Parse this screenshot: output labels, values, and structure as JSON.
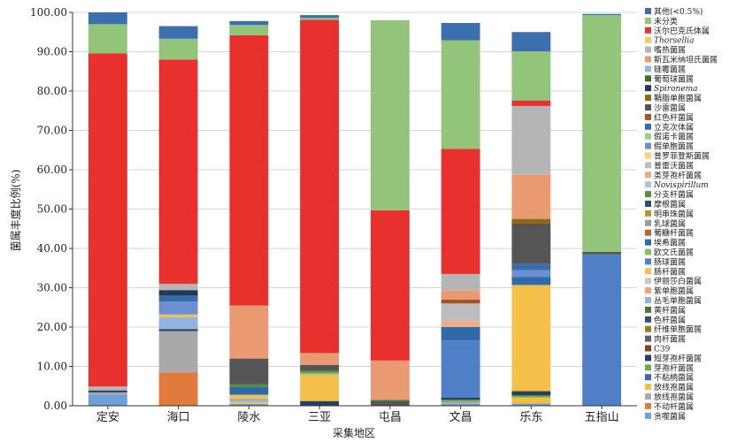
{
  "chart_data": {
    "type": "bar",
    "stacked": true,
    "title": "",
    "xlabel": "采集地区",
    "ylabel": "菌属丰度比例(%)",
    "ylim": [
      0,
      100
    ],
    "yticks": [
      "0.00",
      "10.00",
      "20.00",
      "30.00",
      "40.00",
      "50.00",
      "60.00",
      "70.00",
      "80.00",
      "90.00",
      "100.00"
    ],
    "categories": [
      "定安",
      "海口",
      "陵水",
      "三亚",
      "屯昌",
      "文昌",
      "乐东",
      "五指山"
    ],
    "legend_position": "right",
    "series": [
      {
        "name": "贪噬菌属",
        "color": "#6f9fd8",
        "values": [
          2.8,
          0,
          0.5,
          0,
          0,
          0.5,
          0.6,
          0
        ]
      },
      {
        "name": "不动杆菌属",
        "color": "#e07b3c",
        "values": [
          0,
          8.5,
          0,
          0,
          0,
          0,
          0,
          0
        ]
      },
      {
        "name": "放线孢菌属",
        "color": "#a9a9a9",
        "values": [
          0.6,
          10.5,
          0,
          0,
          0,
          0.5,
          0,
          0
        ]
      },
      {
        "name": "放线孢菌属",
        "color": "#f2c040",
        "values": [
          0,
          0,
          0.5,
          0,
          0,
          0,
          1.5,
          0
        ]
      },
      {
        "name": "不粘柄菌属",
        "color": "#3d66b8",
        "values": [
          0,
          0,
          0,
          0,
          0,
          0,
          0,
          0
        ]
      },
      {
        "name": "芽孢杆菌属",
        "color": "#72ab48",
        "values": [
          0,
          0,
          0,
          0,
          0,
          0.5,
          0.5,
          0
        ]
      },
      {
        "name": "短芽孢杆菌属",
        "color": "#23405f",
        "values": [
          0.5,
          0.5,
          0,
          1.2,
          0,
          0.6,
          1.1,
          0
        ]
      },
      {
        "name": "C39",
        "color": "#8b3e1e",
        "values": [
          0,
          0,
          0,
          0,
          0.5,
          0,
          0,
          0
        ]
      },
      {
        "name": "肉杆菌属",
        "color": "#5f5f5f",
        "values": [
          0,
          0,
          0,
          0,
          0,
          0,
          0,
          0
        ]
      },
      {
        "name": "纤维单胞菌属",
        "color": "#9c7b1e",
        "values": [
          0,
          0,
          0,
          0,
          0,
          0,
          0,
          0
        ]
      },
      {
        "name": "色杆菌属",
        "color": "#2f4e78",
        "values": [
          0,
          0,
          0,
          0,
          0.5,
          0,
          0,
          0
        ]
      },
      {
        "name": "黄杆菌属",
        "color": "#4a7b2c",
        "values": [
          0,
          0,
          0,
          0,
          0.5,
          0,
          0,
          0
        ]
      },
      {
        "name": "丛毛单胞菌属",
        "color": "#8fb4e0",
        "values": [
          0,
          3.0,
          0.8,
          0,
          0,
          0,
          0,
          0
        ]
      },
      {
        "name": "紫单胞菌属",
        "color": "#f4a07a",
        "values": [
          0,
          0,
          0,
          0,
          0,
          0,
          0,
          0
        ]
      },
      {
        "name": "伊丽莎白菌属",
        "color": "#c8c8c8",
        "values": [
          0,
          0,
          0,
          0,
          0,
          0,
          0,
          0
        ]
      },
      {
        "name": "肠杆菌属",
        "color": "#f5c04a",
        "values": [
          0,
          0.7,
          1.0,
          6.7,
          0,
          0,
          27,
          0
        ]
      },
      {
        "name": "肠球菌属",
        "color": "#4f7fc6",
        "values": [
          0,
          0,
          0,
          0,
          0,
          14.5,
          0,
          38.5
        ]
      },
      {
        "name": "欧文氏菌属",
        "color": "#8dbe6a",
        "values": [
          0,
          0,
          0,
          0.5,
          0,
          0,
          0,
          0
        ]
      },
      {
        "name": "埃希菌属",
        "color": "#2e6aa8",
        "values": [
          0,
          0,
          2.0,
          0,
          0,
          3.4,
          2,
          0
        ]
      },
      {
        "name": "葡糖杆菌属",
        "color": "#c0652a",
        "values": [
          0,
          0,
          0,
          0,
          0,
          0,
          0,
          0
        ]
      },
      {
        "name": "乳球菌属",
        "color": "#9b9b9b",
        "values": [
          0,
          0,
          0,
          0,
          0,
          0,
          0,
          0
        ]
      },
      {
        "name": "明串珠菌属",
        "color": "#b8962e",
        "values": [
          0,
          0,
          0,
          0,
          0,
          0,
          0,
          0
        ]
      },
      {
        "name": "摩根菌属",
        "color": "#2e4d7a",
        "values": [
          0,
          0,
          0,
          0,
          0,
          0,
          0,
          0
        ]
      },
      {
        "name": "分支杆菌属",
        "color": "#5a8c3a",
        "values": [
          0,
          0,
          0.7,
          0.5,
          0,
          0,
          0,
          0
        ]
      },
      {
        "name": "Novispirillum",
        "color": "#a8c4e8",
        "italic": true,
        "values": [
          0,
          0,
          0,
          0,
          0,
          0,
          0,
          0
        ]
      },
      {
        "name": "类芽孢杆菌属",
        "color": "#f0aa88",
        "values": [
          0,
          0,
          0,
          0,
          0,
          1.5,
          0,
          0
        ]
      },
      {
        "name": "普雷沃菌属",
        "color": "#bdbdbd",
        "values": [
          0,
          0,
          0,
          0,
          0,
          4.5,
          0,
          0
        ]
      },
      {
        "name": "普罗菲登斯菌属",
        "color": "#f7d27a",
        "values": [
          0,
          0,
          0,
          0,
          0,
          0,
          0,
          0
        ]
      },
      {
        "name": "假单胞菌属",
        "color": "#6b8fd0",
        "values": [
          0,
          3.3,
          0,
          0,
          0,
          0,
          1.8,
          0
        ]
      },
      {
        "name": "假诺卡菌属",
        "color": "#a3cc84",
        "values": [
          0,
          0,
          0,
          0,
          0,
          0,
          0,
          0
        ]
      },
      {
        "name": "立克次体属",
        "color": "#3a6ca8",
        "values": [
          0,
          1.5,
          0,
          0,
          0,
          0,
          1.6,
          0
        ]
      },
      {
        "name": "红色杆菌属",
        "color": "#a8502a",
        "values": [
          0,
          0,
          0,
          0,
          0,
          1.0,
          0,
          0
        ]
      },
      {
        "name": "沙雷菌属",
        "color": "#555555",
        "values": [
          0,
          0,
          6.5,
          1.5,
          0,
          0,
          10.2,
          0.6
        ]
      },
      {
        "name": "鞘脂单胞菌属",
        "color": "#8a6a1a",
        "values": [
          0,
          0,
          0,
          0,
          0,
          0,
          1.2,
          0
        ]
      },
      {
        "name": "Spironema",
        "color": "#22385a",
        "italic": true,
        "values": [
          0,
          1.4,
          0,
          0,
          0,
          0,
          0,
          0
        ]
      },
      {
        "name": "葡萄球菌属",
        "color": "#3e6e28",
        "values": [
          0,
          0,
          0,
          0,
          0,
          0,
          0,
          0
        ]
      },
      {
        "name": "链霉菌属",
        "color": "#8fb8e8",
        "values": [
          0,
          0,
          0,
          0,
          0,
          0,
          0,
          0
        ]
      },
      {
        "name": "斯瓦米纳坦氏菌属",
        "color": "#e99a70",
        "values": [
          0,
          0,
          13.5,
          3.0,
          10.0,
          2.3,
          11.2,
          0
        ]
      },
      {
        "name": "嗜热菌属",
        "color": "#b5b5b5",
        "values": [
          1.0,
          1.6,
          0,
          0,
          0,
          4.2,
          17.5,
          0
        ]
      },
      {
        "name": "Thorsellia",
        "color": "#f5c95a",
        "italic": true,
        "values": [
          0,
          0,
          0,
          0,
          0,
          0,
          0,
          0
        ]
      },
      {
        "name": "沃尔巴克氏体属",
        "color": "#e8302e",
        "values": [
          84.7,
          57.0,
          68.7,
          84.7,
          38.2,
          31.8,
          1.4,
          0
        ]
      },
      {
        "name": "未分类",
        "color": "#92c47a",
        "values": [
          7.4,
          5.3,
          2.6,
          0.5,
          48.3,
          27.6,
          12.5,
          60.2
        ]
      },
      {
        "name": "其他(<0.5%)",
        "color": "#3b6fae",
        "values": [
          3.0,
          3.2,
          1.0,
          0.7,
          0,
          4.4,
          4.9,
          0.3
        ]
      }
    ]
  }
}
